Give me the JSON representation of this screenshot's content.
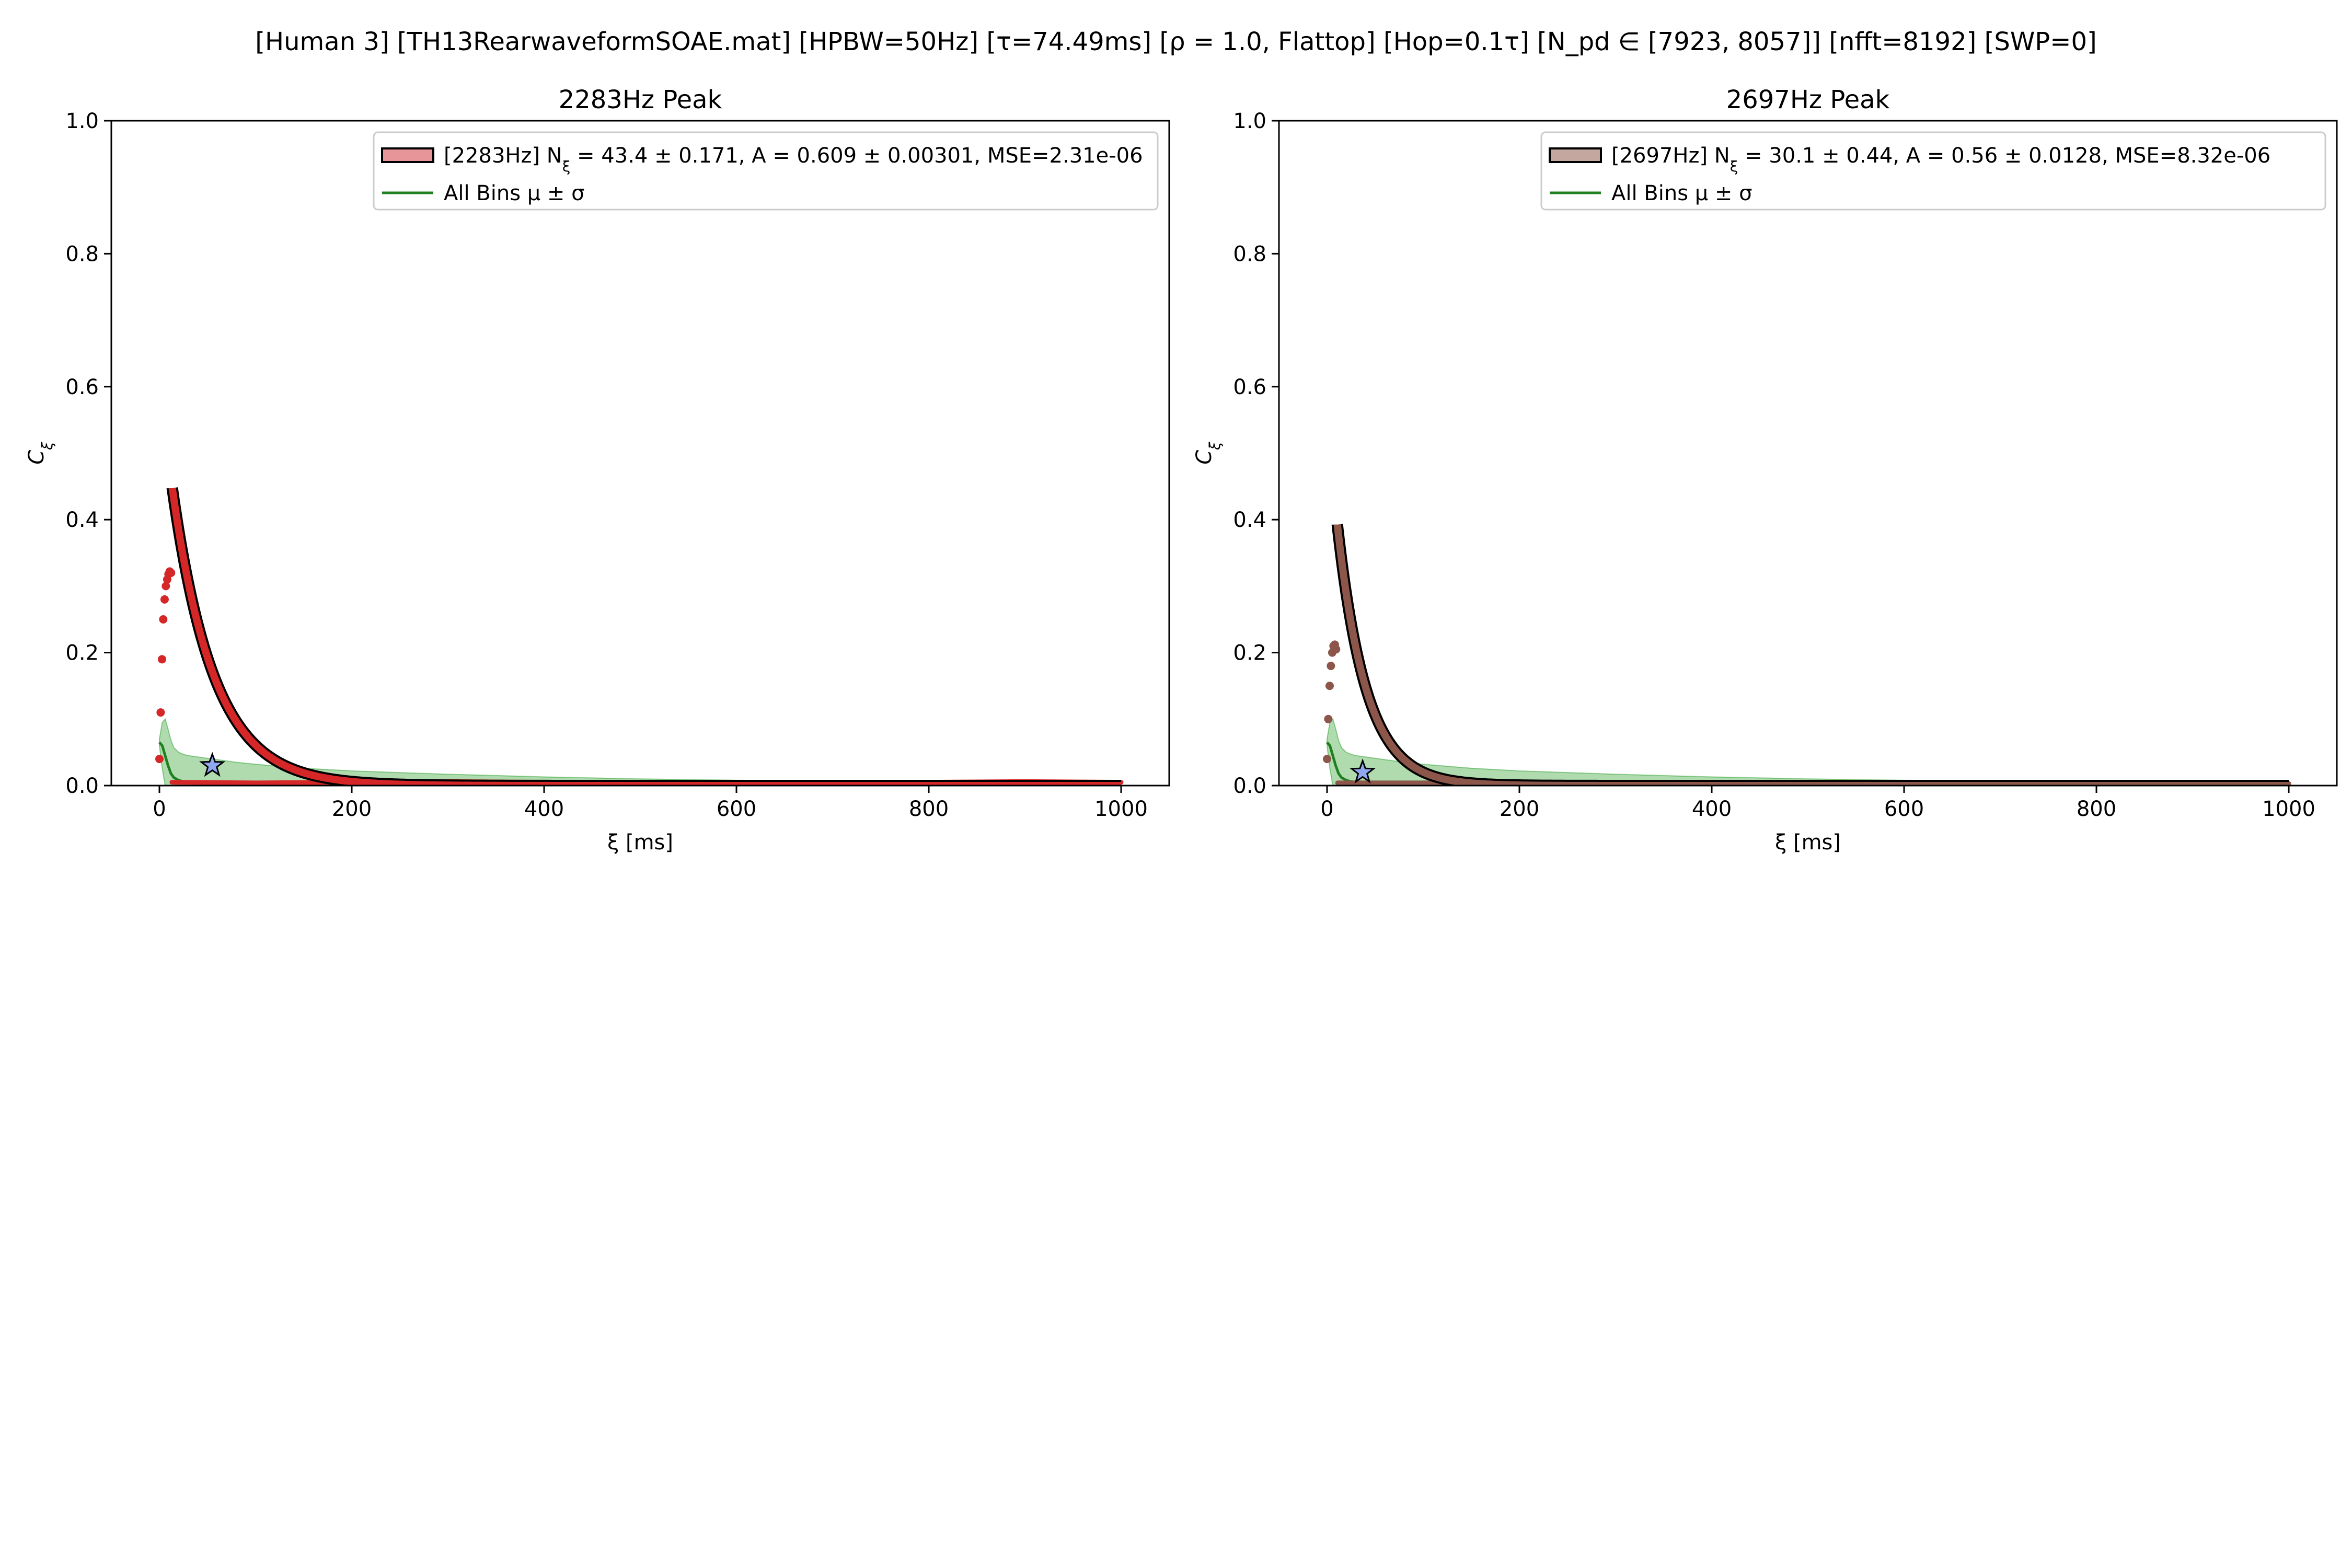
{
  "figure": {
    "suptitle": "[Human 3]   [TH13RearwaveformSOAE.mat]   [HPBW=50Hz]   [τ=74.49ms]   [ρ = 1.0, Flattop]   [Hop=0.1τ]   [N_pd ∈ [7923, 8057]]   [nfft=8192]   [SWP=0]"
  },
  "colors": {
    "band_fill": "#2ca02c",
    "mean_line": "#208020",
    "fit_outline": "#000000",
    "star_fill": "#8fa8f0",
    "legend_frame": "#cccccc"
  },
  "chart_data": [
    {
      "type": "scatter",
      "title": "2283Hz Peak",
      "xlabel": "ξ [ms]",
      "ylabel": "C_ξ",
      "xlim": [
        -50,
        1050
      ],
      "ylim": [
        0,
        1
      ],
      "xticks": [
        0,
        200,
        400,
        600,
        800,
        1000
      ],
      "xtick_labels": [
        "0",
        "200",
        "400",
        "600",
        "800",
        "1000"
      ],
      "yticks": [
        0,
        0.2,
        0.4,
        0.6,
        0.8,
        1.0
      ],
      "ytick_labels": [
        "0.0",
        "0.2",
        "0.4",
        "0.6",
        "0.8",
        "1.0"
      ],
      "grid": false,
      "legend_position": "top-right",
      "legend": [
        {
          "kind": "patch",
          "label": "[2283Hz] N_ξ = 43.4 ± 0.171, A = 0.609 ± 0.00301, MSE=2.31e-06"
        },
        {
          "kind": "line",
          "label": "All Bins μ ± σ"
        }
      ],
      "peak_color": "#d62728",
      "legend_patch_color": "#e8959a",
      "points_x": [
        0,
        1.3,
        2.7,
        4.0,
        5.4,
        6.7,
        8.1,
        9.4,
        10.7,
        12.1
      ],
      "points_y": [
        0.04,
        0.11,
        0.19,
        0.25,
        0.28,
        0.3,
        0.31,
        0.318,
        0.322,
        0.32
      ],
      "fit": {
        "amplitude": 0.609,
        "decay_ms": 43.4,
        "x_start": 13.4,
        "x_end": 1000
      },
      "noise_curve": {
        "x": [
          13,
          100,
          200,
          300,
          400,
          500,
          600,
          700,
          800,
          900,
          1000
        ],
        "y": [
          0.005,
          0.004,
          0.005,
          0.006,
          0.005,
          0.004,
          0.004,
          0.004,
          0.005,
          0.006,
          0.005
        ]
      },
      "star": {
        "x": 55,
        "y": 0.03
      },
      "all_bins": {
        "x": [
          0,
          3,
          6,
          9,
          12,
          15,
          20,
          25,
          30,
          40,
          50,
          60,
          80,
          100,
          150,
          200,
          300,
          400,
          500,
          600,
          700,
          800,
          900,
          1000
        ],
        "mean": [
          0.065,
          0.06,
          0.045,
          0.03,
          0.018,
          0.012,
          0.008,
          0.006,
          0.005,
          0.004,
          0.004,
          0.004,
          0.004,
          0.003,
          0.003,
          0.003,
          0.003,
          0.003,
          0.003,
          0.003,
          0.003,
          0.003,
          0.003,
          0.003
        ],
        "upper": [
          0.07,
          0.095,
          0.1,
          0.085,
          0.068,
          0.057,
          0.05,
          0.047,
          0.045,
          0.043,
          0.041,
          0.039,
          0.035,
          0.032,
          0.026,
          0.022,
          0.017,
          0.013,
          0.01,
          0.008,
          0.007,
          0.006,
          0.005,
          0.004
        ],
        "lower": [
          0.06,
          0.025,
          0,
          0,
          0,
          0,
          0,
          0,
          0,
          0,
          0,
          0,
          0,
          0,
          0,
          0,
          0,
          0,
          0,
          0,
          0,
          0,
          0,
          0
        ]
      }
    },
    {
      "type": "scatter",
      "title": "2697Hz Peak",
      "xlabel": "ξ [ms]",
      "ylabel": "C_ξ",
      "xlim": [
        -50,
        1050
      ],
      "ylim": [
        0,
        1
      ],
      "xticks": [
        0,
        200,
        400,
        600,
        800,
        1000
      ],
      "xtick_labels": [
        "0",
        "200",
        "400",
        "600",
        "800",
        "1000"
      ],
      "yticks": [
        0,
        0.2,
        0.4,
        0.6,
        0.8,
        1.0
      ],
      "ytick_labels": [
        "0.0",
        "0.2",
        "0.4",
        "0.6",
        "0.8",
        "1.0"
      ],
      "grid": false,
      "legend_position": "top-right",
      "legend": [
        {
          "kind": "patch",
          "label": "[2697Hz] N_ξ = 30.1 ± 0.44, A = 0.56 ± 0.0128, MSE=8.32e-06"
        },
        {
          "kind": "line",
          "label": "All Bins μ ± σ"
        }
      ],
      "peak_color": "#8c564b",
      "legend_patch_color": "#c4a8a0",
      "points_x": [
        0,
        1.3,
        2.7,
        4.0,
        5.4,
        6.7,
        8.1,
        9.4
      ],
      "points_y": [
        0.04,
        0.1,
        0.15,
        0.18,
        0.2,
        0.21,
        0.212,
        0.205
      ],
      "fit": {
        "amplitude": 0.56,
        "decay_ms": 30.1,
        "x_start": 10.7,
        "x_end": 1000
      },
      "noise_curve": {
        "x": [
          11,
          100,
          200,
          300,
          400,
          500,
          600,
          700,
          800,
          900,
          1000
        ],
        "y": [
          0.004,
          0.004,
          0.005,
          0.004,
          0.004,
          0.004,
          0.003,
          0.004,
          0.004,
          0.004,
          0.003
        ]
      },
      "star": {
        "x": 37,
        "y": 0.02
      },
      "all_bins": {
        "x": [
          0,
          3,
          6,
          9,
          12,
          15,
          20,
          25,
          30,
          40,
          50,
          60,
          80,
          100,
          150,
          200,
          300,
          400,
          500,
          600,
          700,
          800,
          900,
          1000
        ],
        "mean": [
          0.065,
          0.06,
          0.045,
          0.03,
          0.018,
          0.012,
          0.008,
          0.006,
          0.005,
          0.004,
          0.004,
          0.004,
          0.004,
          0.003,
          0.003,
          0.003,
          0.003,
          0.003,
          0.003,
          0.003,
          0.003,
          0.003,
          0.003,
          0.003
        ],
        "upper": [
          0.07,
          0.095,
          0.1,
          0.085,
          0.068,
          0.057,
          0.05,
          0.047,
          0.045,
          0.043,
          0.041,
          0.039,
          0.035,
          0.032,
          0.026,
          0.022,
          0.017,
          0.013,
          0.01,
          0.008,
          0.007,
          0.006,
          0.005,
          0.004
        ],
        "lower": [
          0.06,
          0.025,
          0,
          0,
          0,
          0,
          0,
          0,
          0,
          0,
          0,
          0,
          0,
          0,
          0,
          0,
          0,
          0,
          0,
          0,
          0,
          0,
          0,
          0
        ]
      }
    }
  ]
}
